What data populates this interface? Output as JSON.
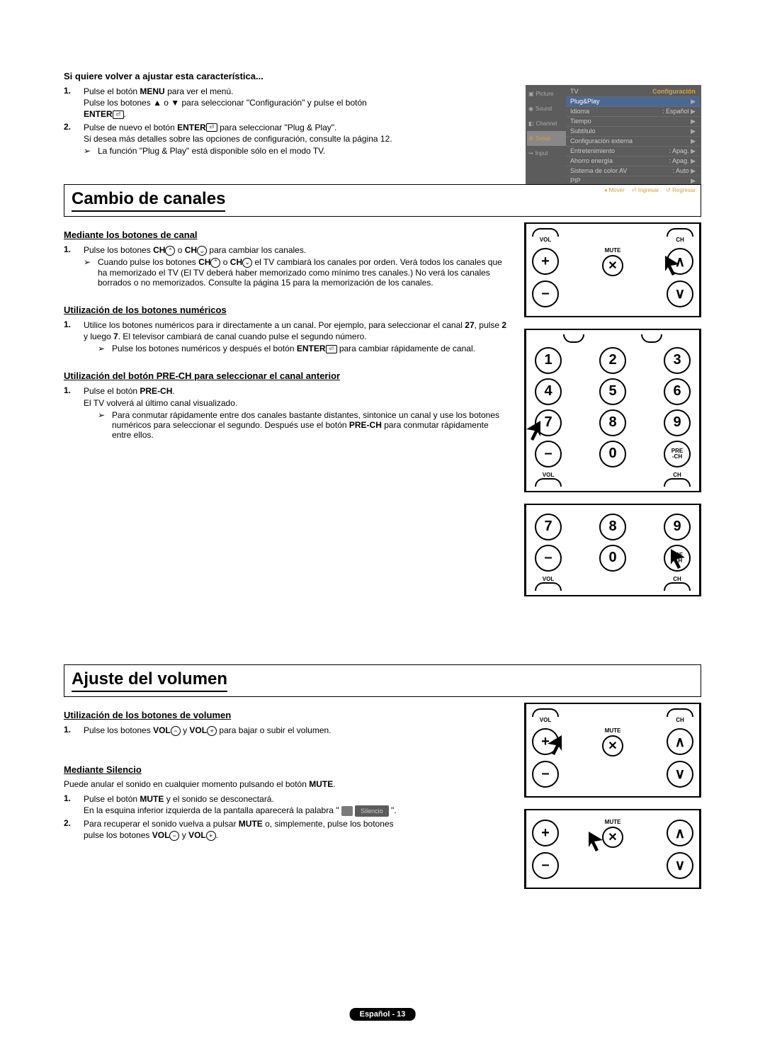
{
  "reset": {
    "heading": "Si quiere volver a ajustar esta característica...",
    "step1_a": "Pulse el botón ",
    "step1_b": "MENU",
    "step1_c": " para ver el menú.",
    "step1_d": "Pulse los botones ▲ o ▼ para seleccionar \"Configuración\" y pulse el botón ",
    "step1_e": "ENTER",
    "step1_f": ".",
    "step2_a": "Pulse de nuevo el botón ",
    "step2_b": "ENTER",
    "step2_c": " para seleccionar \"Plug & Play\".",
    "step2_d": "Si desea más detalles sobre las opciones de configuración, consulte la página 12.",
    "note": "La función \"Plug & Play\" está disponible sólo en el modo TV."
  },
  "tvmenu": {
    "tv": "TV",
    "title": "Configuración",
    "left": [
      "Picture",
      "Sound",
      "Channel",
      "Setup",
      "Input"
    ],
    "items": [
      {
        "k": "Plug&Play",
        "v": "",
        "hl": true
      },
      {
        "k": "Idioma",
        "v": ": Español"
      },
      {
        "k": "Tiempo",
        "v": ""
      },
      {
        "k": "Subtítulo",
        "v": ""
      },
      {
        "k": "Configuración externa",
        "v": ""
      },
      {
        "k": "Entretenimiento",
        "v": ": Apag."
      },
      {
        "k": "Ahorro energía",
        "v": ": Apag."
      },
      {
        "k": "Sistema de color AV",
        "v": ": Auto"
      },
      {
        "k": "PIP",
        "v": ""
      }
    ],
    "f1": "Mover",
    "f2": "Ingresar",
    "f3": "Regresar"
  },
  "cambio": {
    "title": "Cambio de canales",
    "h1": "Mediante los botones de canal",
    "s1a": "Pulse los botones ",
    "s1b": "CH",
    "s1c": " o ",
    "s1d": "CH",
    "s1e": " para cambiar los canales.",
    "n1a": "Cuando pulse los botones ",
    "n1b": "CH",
    "n1c": " o ",
    "n1d": "CH",
    "n1e": " el TV cambiará los canales por orden. Verá todos los canales que ha memorizado el TV (El TV deberá haber memorizado como mínimo tres canales.) No verá los canales borrados o no memorizados. Consulte la página 15 para la memorización de los canales.",
    "h2": "Utilización de los botones numéricos",
    "s2a": "Utilice los botones numéricos para ir directamente a un canal. Por ejemplo, para seleccionar el canal ",
    "s2b": "27",
    "s2c": ", pulse ",
    "s2d": "2",
    "s2e": " y luego ",
    "s2f": "7",
    "s2g": ". El televisor cambiará de canal cuando pulse el segundo número.",
    "n2a": "Pulse los botones numéricos y después el botón ",
    "n2b": "ENTER",
    "n2c": " para cambiar rápidamente de canal.",
    "h3": "Utilización del botón PRE-CH para seleccionar el canal anterior",
    "s3a": "Pulse el botón ",
    "s3b": "PRE-CH",
    "s3c": ".",
    "s3d": "El TV volverá al último canal visualizado.",
    "n3a": "Para conmutar rápidamente entre dos canales bastante distantes, sintonice un canal y use los botones numéricos para seleccionar el segundo. Después use el botón ",
    "n3b": "PRE-CH",
    "n3c": " para conmutar rápidamente entre ellos."
  },
  "ajuste": {
    "title": "Ajuste del volumen",
    "h1": "Utilización de los botones de volumen",
    "s1a": "Pulse los botones ",
    "s1b": "VOL",
    "s1c": " y ",
    "s1d": "VOL",
    "s1e": " para bajar o subir el volumen.",
    "h2": "Mediante Silencio",
    "pa": "Puede anular el sonido en cualquier momento pulsando el botón ",
    "pb": "MUTE",
    "pc": ".",
    "s2a": "Pulse el botón ",
    "s2b": "MUTE",
    "s2c": " y el sonido se desconectará.",
    "s2d": "En la esquina inferior izquierda de la pantalla aparecerá la palabra \" ",
    "s2e": " \".",
    "silencio": "Silencio",
    "s3a": "Para recuperar el sonido vuelva a pulsar ",
    "s3b": "MUTE",
    "s3c": " o, simplemente, pulse los botones ",
    "s3d": "VOL",
    "s3e": " y ",
    "s3f": "VOL",
    "s3g": "."
  },
  "remote": {
    "vol": "VOL",
    "ch": "CH",
    "mute": "MUTE",
    "prech": "PRE\n-CH",
    "nums": [
      "1",
      "2",
      "3",
      "4",
      "5",
      "6",
      "7",
      "8",
      "9",
      "–",
      "0"
    ]
  },
  "footer": "Español - 13",
  "glyph": {
    "up": "∧",
    "down": "∨",
    "plus": "+",
    "minus": "–",
    "note": "➢",
    "enter": "⏎",
    "circ_up": "⌃",
    "circ_down": "⌄",
    "circ_plus": "+",
    "circ_minus": "−",
    "mute": "✕"
  }
}
